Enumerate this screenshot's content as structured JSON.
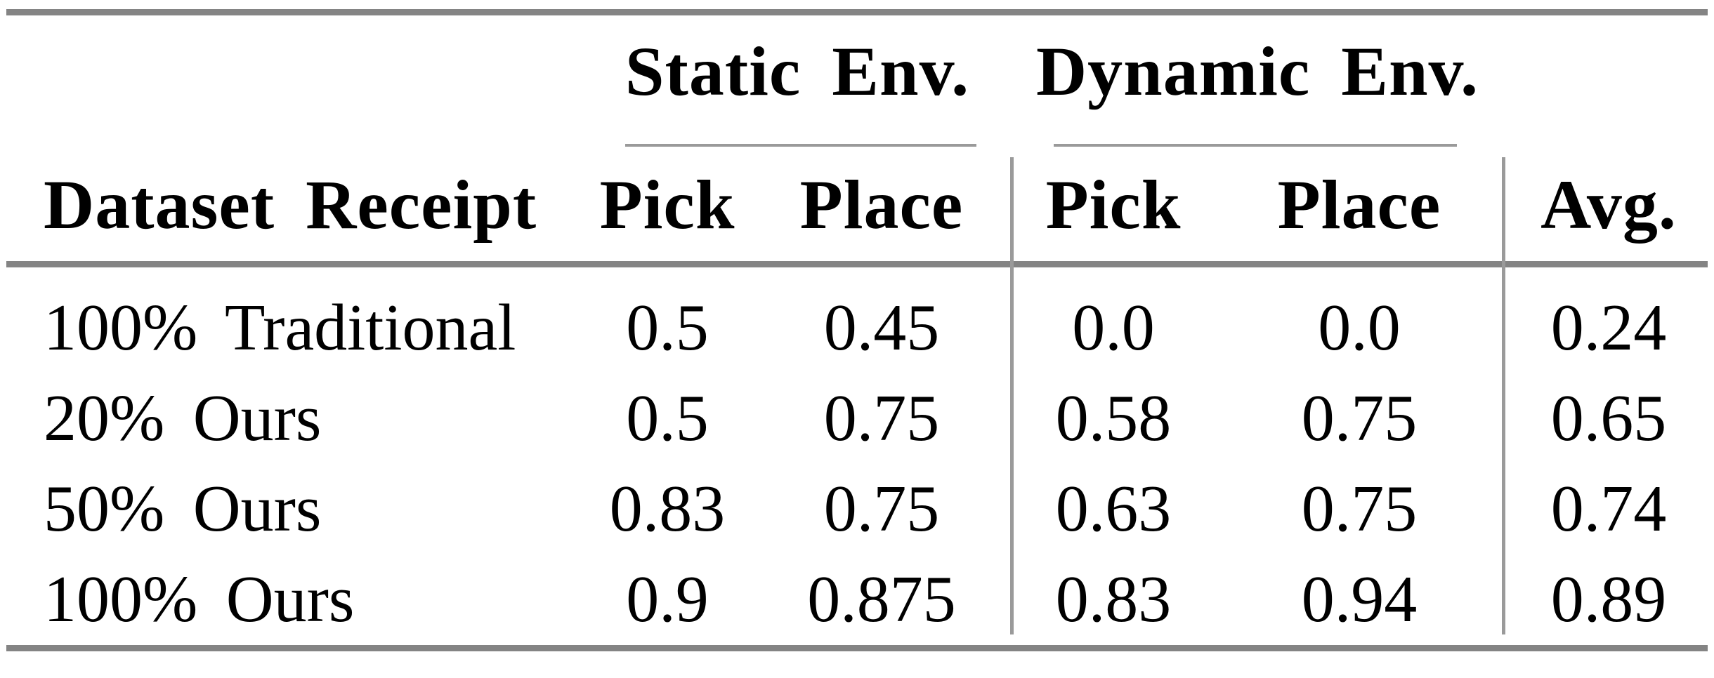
{
  "table": {
    "groups": {
      "static": "Static Env.",
      "dynamic": "Dynamic Env."
    },
    "headers": {
      "dataset": "Dataset Receipt",
      "static_pick": "Pick",
      "static_place": "Place",
      "dynamic_pick": "Pick",
      "dynamic_place": "Place",
      "avg": "Avg."
    },
    "rows": [
      {
        "dataset": "100% Traditional",
        "static_pick": "0.5",
        "static_place": "0.45",
        "dynamic_pick": "0.0",
        "dynamic_place": "0.0",
        "avg": "0.24"
      },
      {
        "dataset": "20% Ours",
        "static_pick": "0.5",
        "static_place": "0.75",
        "dynamic_pick": "0.58",
        "dynamic_place": "0.75",
        "avg": "0.65"
      },
      {
        "dataset": "50% Ours",
        "static_pick": "0.83",
        "static_place": "0.75",
        "dynamic_pick": "0.63",
        "dynamic_place": "0.75",
        "avg": "0.74"
      },
      {
        "dataset": "100% Ours",
        "static_pick": "0.9",
        "static_place": "0.875",
        "dynamic_pick": "0.83",
        "dynamic_place": "0.94",
        "avg": "0.89"
      }
    ],
    "colors": {
      "text": "#000000",
      "thick_rule": "#848484",
      "thin_rule": "#9a9a9a",
      "background": "#ffffff"
    }
  },
  "chart_data": {
    "type": "table",
    "title": "",
    "columns": [
      "Dataset Receipt",
      "Static Env. Pick",
      "Static Env. Place",
      "Dynamic Env. Pick",
      "Dynamic Env. Place",
      "Avg."
    ],
    "rows": [
      [
        "100% Traditional",
        0.5,
        0.45,
        0.0,
        0.0,
        0.24
      ],
      [
        "20% Ours",
        0.5,
        0.75,
        0.58,
        0.75,
        0.65
      ],
      [
        "50% Ours",
        0.83,
        0.75,
        0.63,
        0.75,
        0.74
      ],
      [
        "100% Ours",
        0.9,
        0.875,
        0.83,
        0.94,
        0.89
      ]
    ]
  }
}
